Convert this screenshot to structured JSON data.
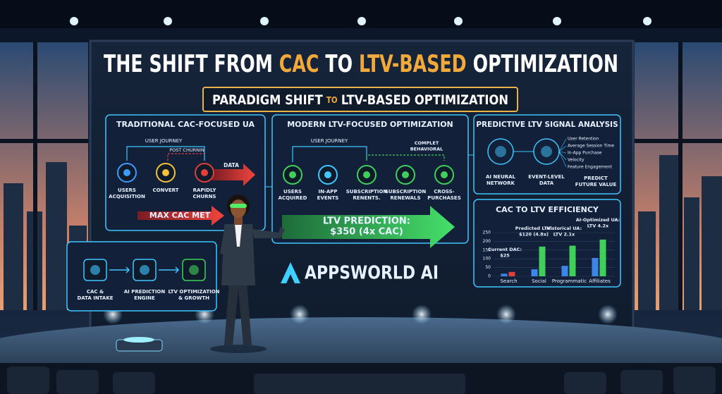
{
  "title": {
    "parts": [
      "THE SHIFT FROM",
      "CAC",
      "TO",
      "LTV-BASED",
      "OPTIMIZATION"
    ]
  },
  "subtitle": {
    "parts": [
      "PARADIGM SHIFT",
      "TO",
      "LTV-BASED OPTIMIZATION"
    ]
  },
  "traditional_panel": {
    "title": "TRADITIONAL CAC-FOCUSED UA",
    "journey_label": "USER JOURNEY",
    "churn_label": "POST CHURNIN",
    "data_label": "DATA",
    "nodes": [
      {
        "lines": [
          "USERS",
          "ACQUISITION"
        ]
      },
      {
        "lines": [
          "CONVERT"
        ]
      },
      {
        "lines": [
          "RAPIDLY",
          "CHURNS"
        ]
      }
    ],
    "arrow_label": "MAX CAC MET"
  },
  "modern_panel": {
    "title": "MODERN LTV-FOCUSED OPTIMIZATION",
    "journey_label": "USER JOURNEY",
    "behavioral_label": [
      "COMPLET",
      "BEHAVIORAL"
    ],
    "nodes": [
      {
        "lines": [
          "USERS",
          "ACQUIRED"
        ]
      },
      {
        "lines": [
          "IN-APP",
          "EVENTS"
        ]
      },
      {
        "lines": [
          "SUBSCRIPTION",
          "RENENTS."
        ]
      },
      {
        "lines": [
          "SUBSCRIPTION",
          "RENEWALS"
        ]
      },
      {
        "lines": [
          "CROSS-",
          "PURCHASES"
        ]
      }
    ],
    "arrow_label": [
      "LTV PREDICTION:",
      "$350 (4x CAC)"
    ]
  },
  "signal_panel": {
    "title": "PREDICTIVE LTV SIGNAL ANALYSIS",
    "nodes": [
      {
        "lines": [
          "AI NEURAL",
          "NETWORK"
        ]
      },
      {
        "lines": [
          "EVENT-LEVEL",
          "DATA"
        ]
      }
    ],
    "signals": [
      "User Retention",
      "Average Session Time",
      "In-App Purchase",
      "Velocity",
      "Feature Engagement"
    ],
    "output": [
      "PREDICT",
      "FUTURE VALUE"
    ]
  },
  "efficiency_panel": {
    "title": "CAC TO LTV EFFICIENCY",
    "categories": [
      "Search",
      "Social",
      "Programmatic",
      "Affiliates"
    ],
    "ylim": [
      0,
      250
    ],
    "yticks": [
      0,
      50,
      100,
      150,
      200,
      250
    ],
    "series": [
      {
        "color": "#3d86e8",
        "values": [
          15,
          40,
          60,
          105
        ]
      },
      {
        "colors": [
          "#e0403a",
          "#3fcf5a",
          "#3fcf5a",
          "#3fcf5a"
        ],
        "values": [
          25,
          170,
          175,
          210
        ]
      }
    ],
    "annotations": [
      {
        "lines": [
          "Current DAC:",
          "$25"
        ]
      },
      {
        "lines": [
          "Predicted LTV:",
          "$120 (4.8x)"
        ]
      },
      {
        "lines": [
          "Historical UA:",
          "LTV 2.1x"
        ]
      },
      {
        "lines": [
          "AI-Optimized UA:",
          "LTV 4.2x"
        ]
      }
    ]
  },
  "pipeline_panel": {
    "nodes": [
      {
        "lines": [
          "CAC &",
          "DATA INTAKE"
        ]
      },
      {
        "lines": [
          "AI PREDICTION",
          "ENGINE"
        ]
      },
      {
        "lines": [
          "LTV OPTIMIZATION",
          "& GROWTH"
        ]
      }
    ]
  },
  "logo": {
    "text": "APPSWORLD AI"
  }
}
